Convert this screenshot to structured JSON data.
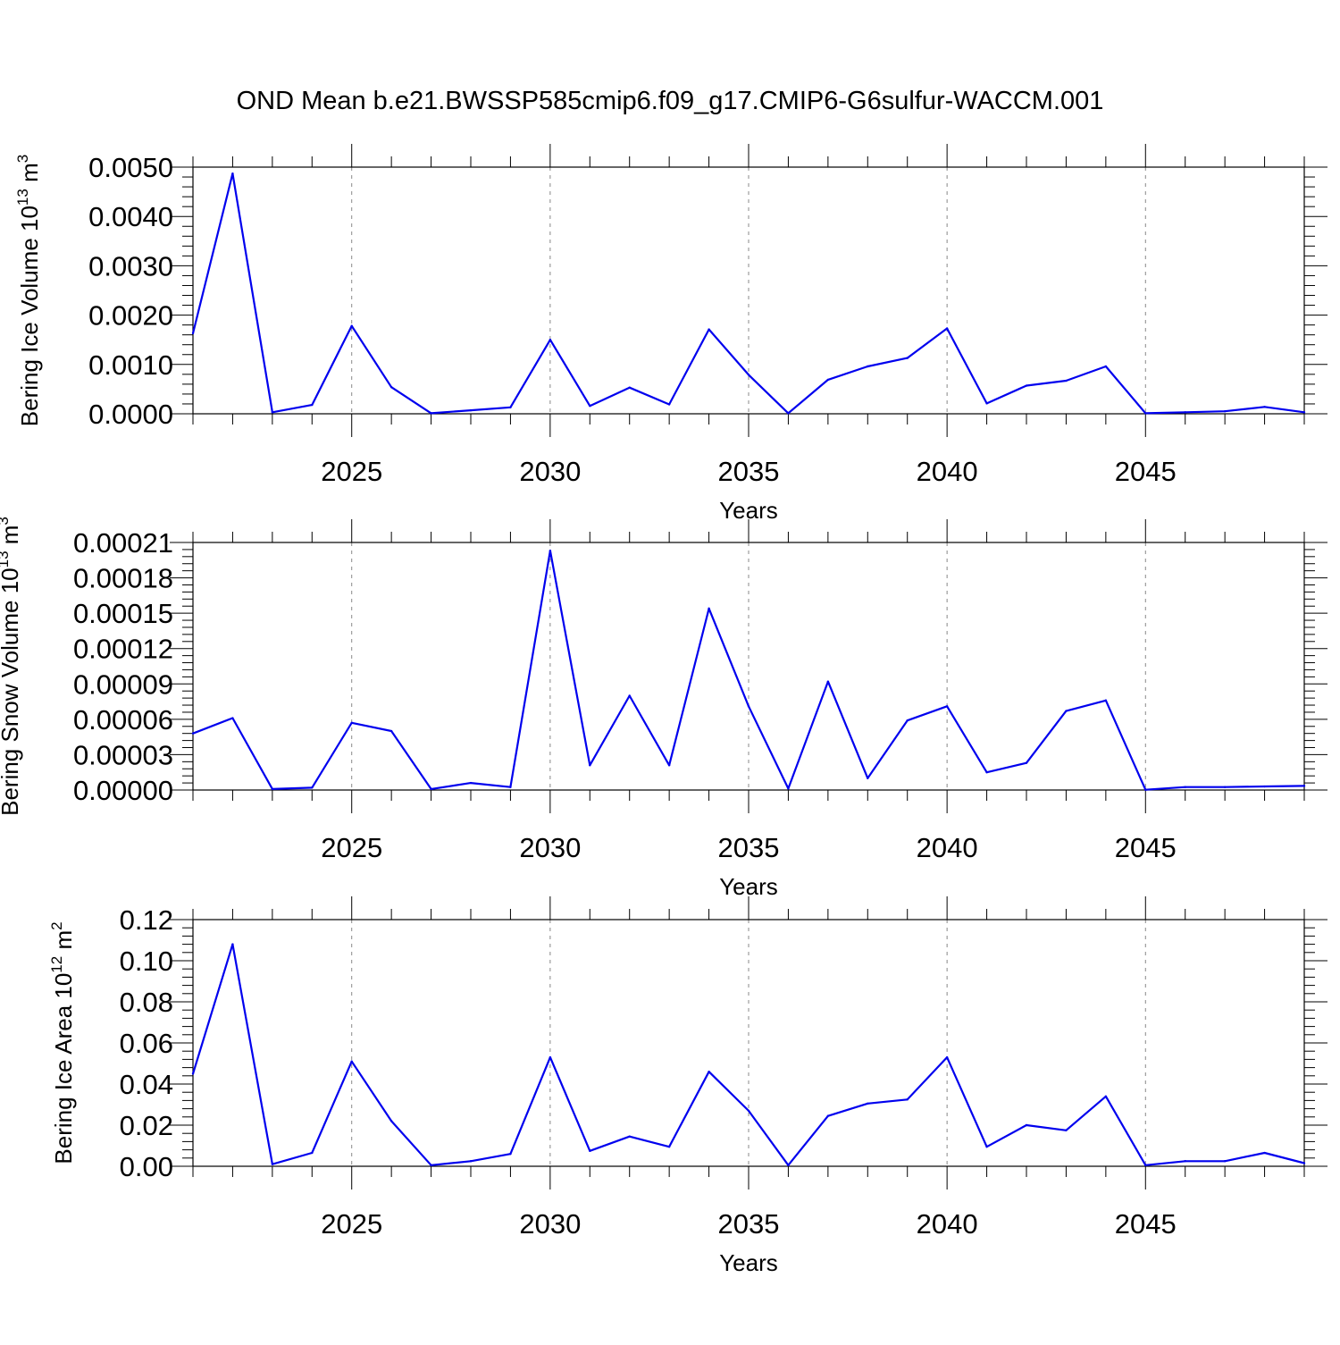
{
  "title": "OND Mean b.e21.BWSSP585cmip6.f09_g17.CMIP6-G6sulfur-WACCM.001",
  "colors": {
    "line": "#0000ee",
    "axis": "#000000",
    "grid": "#888888"
  },
  "chart_data": [
    {
      "type": "line",
      "ylabel": "Bering Ice Volume 10",
      "ylabel_exp": "13",
      "ylabel_unit": " m",
      "ylabel_unit_exp": "3",
      "xlabel": "Years",
      "xlim": [
        2021,
        2049
      ],
      "ylim": [
        0,
        0.005
      ],
      "yticks": [
        0,
        0.001,
        0.002,
        0.003,
        0.004,
        0.005
      ],
      "ytick_labels": [
        "0.0000",
        "0.0010",
        "0.0020",
        "0.0030",
        "0.0040",
        "0.0050"
      ],
      "xticks": [
        2025,
        2030,
        2035,
        2040,
        2045
      ],
      "xtick_labels": [
        "2025",
        "2030",
        "2035",
        "2040",
        "2045"
      ],
      "grid": "vertical dashed at major x ticks",
      "x": [
        2021,
        2022,
        2023,
        2024,
        2025,
        2026,
        2027,
        2028,
        2029,
        2030,
        2031,
        2032,
        2033,
        2034,
        2035,
        2036,
        2037,
        2038,
        2039,
        2040,
        2041,
        2042,
        2043,
        2044,
        2045,
        2046,
        2047,
        2048,
        2049
      ],
      "values": [
        0.00163,
        0.00487,
        3e-05,
        0.00018,
        0.00178,
        0.00054,
        1e-05,
        7e-05,
        0.00013,
        0.0015,
        0.00016,
        0.00053,
        0.00019,
        0.00171,
        0.00079,
        1e-05,
        0.00069,
        0.00096,
        0.00113,
        0.00173,
        0.00021,
        0.00057,
        0.00067,
        0.00096,
        1e-05,
        3e-05,
        5e-05,
        0.00014,
        3e-05
      ]
    },
    {
      "type": "line",
      "ylabel": "Bering Snow Volume 10",
      "ylabel_exp": "13",
      "ylabel_unit": " m",
      "ylabel_unit_exp": "3",
      "xlabel": "Years",
      "xlim": [
        2021,
        2049
      ],
      "ylim": [
        0,
        0.00021
      ],
      "yticks": [
        0,
        3e-05,
        6e-05,
        9e-05,
        0.00012,
        0.00015,
        0.00018,
        0.00021
      ],
      "ytick_labels": [
        "0.00000",
        "0.00003",
        "0.00006",
        "0.00009",
        "0.00012",
        "0.00015",
        "0.00018",
        "0.00021"
      ],
      "xticks": [
        2025,
        2030,
        2035,
        2040,
        2045
      ],
      "xtick_labels": [
        "2025",
        "2030",
        "2035",
        "2040",
        "2045"
      ],
      "grid": "vertical dashed at major x ticks",
      "x": [
        2021,
        2022,
        2023,
        2024,
        2025,
        2026,
        2027,
        2028,
        2029,
        2030,
        2031,
        2032,
        2033,
        2034,
        2035,
        2036,
        2037,
        2038,
        2039,
        2040,
        2041,
        2042,
        2043,
        2044,
        2045,
        2046,
        2047,
        2048,
        2049
      ],
      "values": [
        4.8e-05,
        6.1e-05,
        8e-07,
        2e-06,
        5.7e-05,
        5e-05,
        8e-07,
        6e-06,
        2.5e-06,
        0.000203,
        2.1e-05,
        8e-05,
        2.1e-05,
        0.000154,
        7.1e-05,
        1.2e-06,
        9.2e-05,
        1e-05,
        5.9e-05,
        7.1e-05,
        1.5e-05,
        2.3e-05,
        6.7e-05,
        7.6e-05,
        2e-07,
        2.5e-06,
        2.5e-06,
        3e-06,
        3.5e-06
      ]
    },
    {
      "type": "line",
      "ylabel": "Bering Ice Area 10",
      "ylabel_exp": "12",
      "ylabel_unit": " m",
      "ylabel_unit_exp": "2",
      "xlabel": "Years",
      "xlim": [
        2021,
        2049
      ],
      "ylim": [
        0,
        0.12
      ],
      "yticks": [
        0,
        0.02,
        0.04,
        0.06,
        0.08,
        0.1,
        0.12
      ],
      "ytick_labels": [
        "0.00",
        "0.02",
        "0.04",
        "0.06",
        "0.08",
        "0.10",
        "0.12"
      ],
      "xticks": [
        2025,
        2030,
        2035,
        2040,
        2045
      ],
      "xtick_labels": [
        "2025",
        "2030",
        "2035",
        "2040",
        "2045"
      ],
      "grid": "vertical dashed at major x ticks",
      "x": [
        2021,
        2022,
        2023,
        2024,
        2025,
        2026,
        2027,
        2028,
        2029,
        2030,
        2031,
        2032,
        2033,
        2034,
        2035,
        2036,
        2037,
        2038,
        2039,
        2040,
        2041,
        2042,
        2043,
        2044,
        2045,
        2046,
        2047,
        2048,
        2049
      ],
      "values": [
        0.045,
        0.108,
        0.001,
        0.0065,
        0.051,
        0.022,
        0.0005,
        0.0025,
        0.006,
        0.053,
        0.0075,
        0.0145,
        0.0095,
        0.046,
        0.027,
        0.0005,
        0.0245,
        0.0305,
        0.0325,
        0.053,
        0.0095,
        0.02,
        0.0175,
        0.034,
        0.0005,
        0.0025,
        0.0025,
        0.0065,
        0.0015
      ]
    }
  ]
}
